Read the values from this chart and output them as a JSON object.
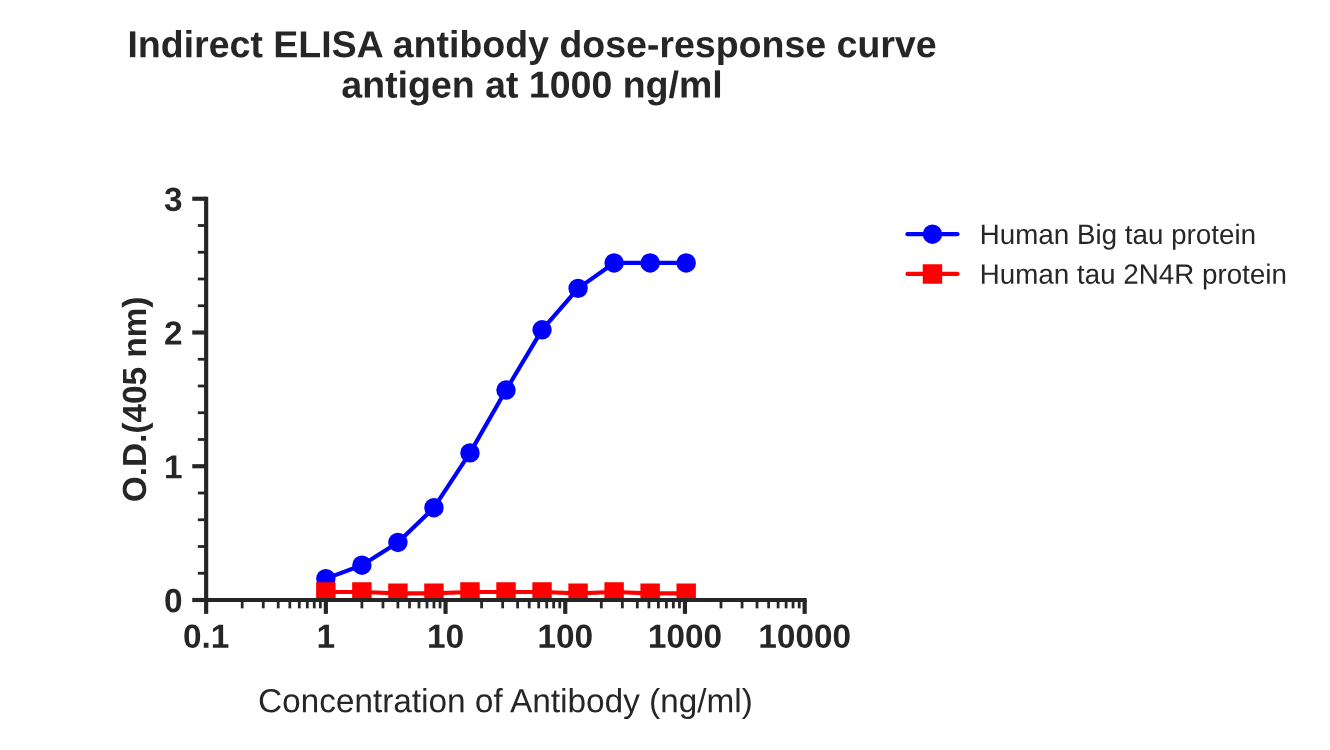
{
  "chart_data": {
    "type": "line",
    "title": "Indirect ELISA antibody dose-response curve\nantigen at 1000 ng/ml",
    "xlabel": "Concentration of Antibody (ng/ml)",
    "ylabel": "O.D.(405 nm)",
    "x": [
      1,
      2,
      4,
      8,
      16,
      32,
      64,
      128,
      256,
      512,
      1024
    ],
    "series": [
      {
        "name": "Human Big tau protein",
        "color": "#0000ff",
        "marker": "circle",
        "values": [
          0.16,
          0.26,
          0.43,
          0.69,
          1.1,
          1.57,
          2.02,
          2.33,
          2.52,
          2.52,
          2.52
        ]
      },
      {
        "name": "Human tau 2N4R protein",
        "color": "#ff0000",
        "marker": "square",
        "values": [
          0.06,
          0.06,
          0.05,
          0.05,
          0.06,
          0.06,
          0.06,
          0.05,
          0.06,
          0.05,
          0.05
        ]
      }
    ],
    "log": "x",
    "xlim": [
      0.1,
      10000
    ],
    "xticks": [
      0.1,
      1,
      10,
      100,
      1000,
      10000
    ],
    "ylim": [
      0,
      3
    ],
    "yticks": [
      0,
      1,
      2,
      3
    ],
    "grid": false,
    "legend": "top right"
  }
}
